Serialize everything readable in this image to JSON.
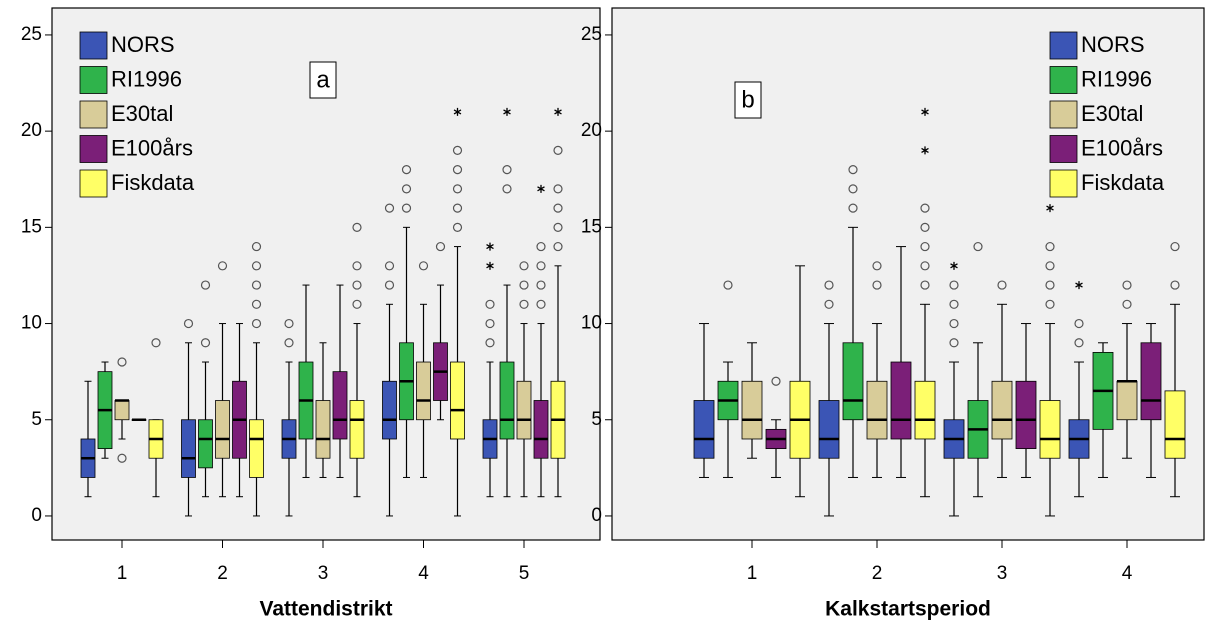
{
  "chart_data": [
    {
      "type": "box",
      "panel_label": "a",
      "x_label": "Vattendistrikt",
      "categories": [
        "1",
        "2",
        "3",
        "4",
        "5"
      ],
      "ylim": [
        -1.25,
        26.4
      ],
      "yticks": [
        0,
        5,
        10,
        15,
        20,
        25
      ],
      "legend_position": "upper left",
      "series": [
        {
          "name": "NORS",
          "color": "#3b55b5",
          "values": [
            {
              "min": 1,
              "q1": 2,
              "median": 3,
              "q3": 4,
              "max": 7
            },
            {
              "min": 0,
              "q1": 2,
              "median": 3,
              "q3": 5,
              "max": 9,
              "outliers": [
                10
              ]
            },
            {
              "min": 0,
              "q1": 3,
              "median": 4,
              "q3": 5,
              "max": 8,
              "outliers": [
                9,
                10
              ]
            },
            {
              "min": 0,
              "q1": 4,
              "median": 5,
              "q3": 7,
              "max": 11,
              "outliers": [
                12,
                13,
                16
              ]
            },
            {
              "min": 1,
              "q1": 3,
              "median": 4,
              "q3": 5,
              "max": 8,
              "outliers": [
                9,
                10,
                11
              ],
              "extremes": [
                13,
                14
              ]
            }
          ]
        },
        {
          "name": "RI1996",
          "color": "#2fb34b",
          "values": [
            {
              "min": 3,
              "q1": 3.5,
              "median": 5.5,
              "q3": 7.5,
              "max": 8
            },
            {
              "min": 1,
              "q1": 2.5,
              "median": 4,
              "q3": 5,
              "max": 8,
              "outliers": [
                9,
                12
              ]
            },
            {
              "min": 2,
              "q1": 4,
              "median": 6,
              "q3": 8,
              "max": 12
            },
            {
              "min": 2,
              "q1": 5,
              "median": 7,
              "q3": 9,
              "max": 15,
              "outliers": [
                16,
                17,
                18
              ]
            },
            {
              "min": 1,
              "q1": 4,
              "median": 5,
              "q3": 8,
              "max": 12,
              "outliers": [
                17,
                18
              ],
              "extremes": [
                21
              ]
            }
          ]
        },
        {
          "name": "E30tal",
          "color": "#d8cc99",
          "values": [
            {
              "min": 4,
              "q1": 5,
              "median": 6,
              "q3": 6,
              "max": 6,
              "outliers": [
                8,
                3
              ]
            },
            {
              "min": 1,
              "q1": 3,
              "median": 4,
              "q3": 6,
              "max": 10,
              "outliers": [
                13
              ]
            },
            {
              "min": 2,
              "q1": 3,
              "median": 4,
              "q3": 6,
              "max": 9
            },
            {
              "min": 2,
              "q1": 5,
              "median": 6,
              "q3": 8,
              "max": 11,
              "outliers": [
                13
              ]
            },
            {
              "min": 1,
              "q1": 4,
              "median": 5,
              "q3": 7,
              "max": 10,
              "outliers": [
                11,
                12,
                13
              ]
            }
          ]
        },
        {
          "name": "E100års",
          "color": "#7b1f78",
          "values": [
            {
              "min": 5,
              "q1": 5,
              "median": 5,
              "q3": 5,
              "max": 5
            },
            {
              "min": 1,
              "q1": 3,
              "median": 5,
              "q3": 7,
              "max": 10
            },
            {
              "min": 2,
              "q1": 4,
              "median": 5,
              "q3": 7.5,
              "max": 12
            },
            {
              "min": 5,
              "q1": 6,
              "median": 7.5,
              "q3": 9,
              "max": 12,
              "outliers": [
                14
              ]
            },
            {
              "min": 1,
              "q1": 3,
              "median": 4,
              "q3": 6,
              "max": 10,
              "outliers": [
                11,
                12,
                13,
                14
              ],
              "extremes": [
                17
              ]
            }
          ]
        },
        {
          "name": "Fiskdata",
          "color": "#ffff66",
          "values": [
            {
              "min": 1,
              "q1": 3,
              "median": 4,
              "q3": 5,
              "max": 5,
              "outliers": [
                9
              ]
            },
            {
              "min": 0,
              "q1": 2,
              "median": 4,
              "q3": 5,
              "max": 9,
              "outliers": [
                10,
                11,
                12,
                13,
                14
              ]
            },
            {
              "min": 1,
              "q1": 3,
              "median": 5,
              "q3": 6,
              "max": 10,
              "outliers": [
                11,
                12,
                13,
                15
              ]
            },
            {
              "min": 0,
              "q1": 4,
              "median": 5.5,
              "q3": 8,
              "max": 14,
              "outliers": [
                15,
                16,
                17,
                18,
                19
              ],
              "extremes": [
                21
              ]
            },
            {
              "min": 1,
              "q1": 3,
              "median": 5,
              "q3": 7,
              "max": 13,
              "outliers": [
                14,
                15,
                16,
                17,
                19
              ],
              "extremes": [
                21
              ]
            }
          ]
        }
      ]
    },
    {
      "type": "box",
      "panel_label": "b",
      "x_label": "Kalkstartsperiod",
      "categories": [
        "1",
        "2",
        "3",
        "4"
      ],
      "ylim": [
        -1.25,
        26.4
      ],
      "yticks": [
        0,
        5,
        10,
        15,
        20,
        25
      ],
      "legend_position": "upper right",
      "series": [
        {
          "name": "NORS",
          "color": "#3b55b5",
          "values": [
            {
              "min": 2,
              "q1": 3,
              "median": 4,
              "q3": 6,
              "max": 10
            },
            {
              "min": 0,
              "q1": 3,
              "median": 4,
              "q3": 6,
              "max": 10,
              "outliers": [
                11,
                12
              ]
            },
            {
              "min": 0,
              "q1": 3,
              "median": 4,
              "q3": 5,
              "max": 8,
              "outliers": [
                9,
                10,
                11,
                12
              ],
              "extremes": [
                13
              ]
            },
            {
              "min": 1,
              "q1": 3,
              "median": 4,
              "q3": 5,
              "max": 8,
              "outliers": [
                9,
                10
              ],
              "extremes": [
                12
              ]
            }
          ]
        },
        {
          "name": "RI1996",
          "color": "#2fb34b",
          "values": [
            {
              "min": 2,
              "q1": 5,
              "median": 6,
              "q3": 7,
              "max": 8,
              "outliers": [
                12
              ]
            },
            {
              "min": 2,
              "q1": 5,
              "median": 6,
              "q3": 9,
              "max": 15,
              "outliers": [
                16,
                17,
                18
              ]
            },
            {
              "min": 1,
              "q1": 3,
              "median": 4.5,
              "q3": 6,
              "max": 9,
              "outliers": [
                14
              ]
            },
            {
              "min": 2,
              "q1": 4.5,
              "median": 6.5,
              "q3": 8.5,
              "max": 9
            }
          ]
        },
        {
          "name": "E30tal",
          "color": "#d8cc99",
          "values": [
            {
              "min": 3,
              "q1": 4,
              "median": 5,
              "q3": 7,
              "max": 9
            },
            {
              "min": 2,
              "q1": 4,
              "median": 5,
              "q3": 7,
              "max": 10,
              "outliers": [
                12,
                13
              ]
            },
            {
              "min": 2,
              "q1": 4,
              "median": 5,
              "q3": 7,
              "max": 11,
              "outliers": [
                12
              ]
            },
            {
              "min": 3,
              "q1": 5,
              "median": 7,
              "q3": 7,
              "max": 10,
              "outliers": [
                11,
                12
              ]
            }
          ]
        },
        {
          "name": "E100års",
          "color": "#7b1f78",
          "values": [
            {
              "min": 2,
              "q1": 3.5,
              "median": 4,
              "q3": 4.5,
              "max": 5,
              "outliers": [
                7
              ]
            },
            {
              "min": 2,
              "q1": 4,
              "median": 5,
              "q3": 8,
              "max": 14
            },
            {
              "min": 2,
              "q1": 3.5,
              "median": 5,
              "q3": 7,
              "max": 10
            },
            {
              "min": 2,
              "q1": 5,
              "median": 6,
              "q3": 9,
              "max": 10
            }
          ]
        },
        {
          "name": "Fiskdata",
          "color": "#ffff66",
          "values": [
            {
              "min": 1,
              "q1": 3,
              "median": 5,
              "q3": 7,
              "max": 13
            },
            {
              "min": 1,
              "q1": 4,
              "median": 5,
              "q3": 7,
              "max": 11,
              "outliers": [
                12,
                13,
                14,
                15,
                16
              ],
              "extremes": [
                19,
                21
              ]
            },
            {
              "min": 0,
              "q1": 3,
              "median": 4,
              "q3": 6,
              "max": 10,
              "outliers": [
                11,
                12,
                13,
                14
              ],
              "extremes": [
                16
              ]
            },
            {
              "min": 1,
              "q1": 3,
              "median": 4,
              "q3": 6.5,
              "max": 11,
              "outliers": [
                12,
                14
              ]
            }
          ]
        }
      ]
    }
  ]
}
